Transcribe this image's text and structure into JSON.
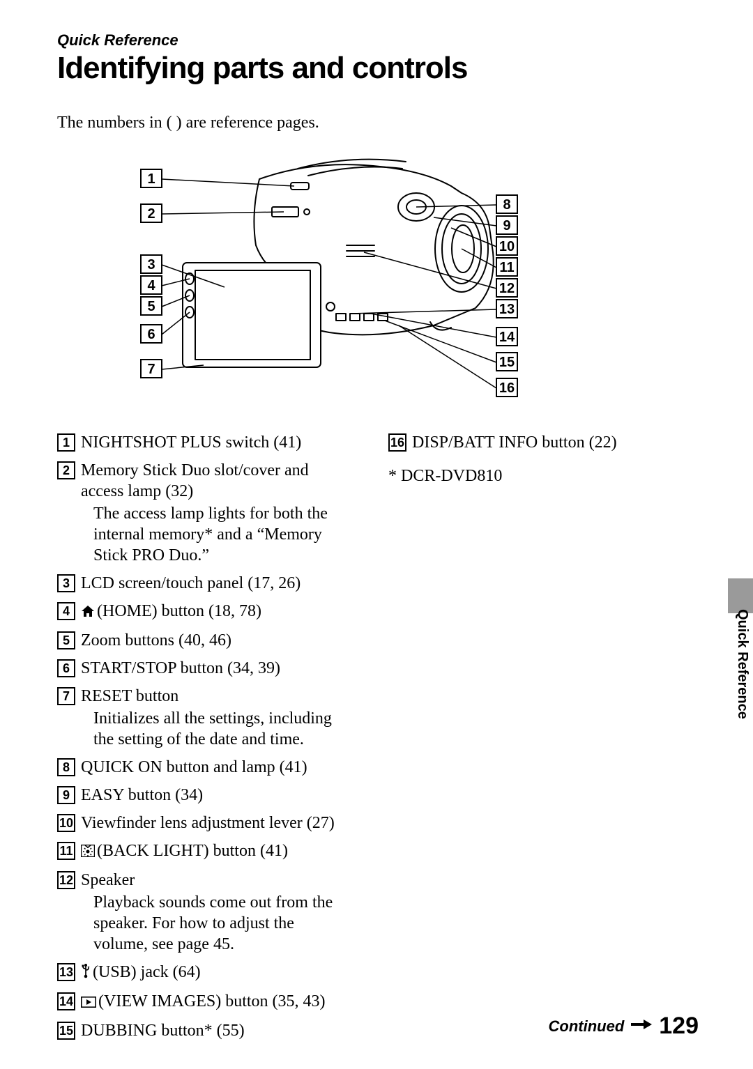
{
  "header": {
    "section_label": "Quick Reference",
    "title": "Identifying parts and controls",
    "intro": "The numbers in ( ) are reference pages."
  },
  "diagram": {
    "left_labels": [
      "1",
      "2",
      "3",
      "4",
      "5",
      "6",
      "7"
    ],
    "right_labels": [
      "8",
      "9",
      "10",
      "11",
      "12",
      "13",
      "14",
      "15",
      "16"
    ],
    "stroke": "#000000",
    "fill_body": "#ffffff",
    "fill_screen": "#ffffff",
    "label_fontsize": 20
  },
  "items_left": [
    {
      "num": "1",
      "icon": null,
      "text": "NIGHTSHOT PLUS switch (41)",
      "sub": null
    },
    {
      "num": "2",
      "icon": null,
      "text": "Memory Stick Duo slot/cover and access lamp (32)",
      "sub": "The access lamp lights for both the internal memory* and a “Memory Stick PRO Duo.”"
    },
    {
      "num": "3",
      "icon": null,
      "text": "LCD screen/touch panel (17, 26)",
      "sub": null
    },
    {
      "num": "4",
      "icon": "home",
      "text": "(HOME) button (18, 78)",
      "sub": null
    },
    {
      "num": "5",
      "icon": null,
      "text": "Zoom buttons (40, 46)",
      "sub": null
    },
    {
      "num": "6",
      "icon": null,
      "text": "START/STOP button (34, 39)",
      "sub": null
    },
    {
      "num": "7",
      "icon": null,
      "text": "RESET button",
      "sub": "Initializes all the settings, including the setting of the date and time."
    },
    {
      "num": "8",
      "icon": null,
      "text": "QUICK ON button and lamp (41)",
      "sub": null
    },
    {
      "num": "9",
      "icon": null,
      "text": "EASY button (34)",
      "sub": null
    },
    {
      "num": "10",
      "icon": null,
      "text": "Viewfinder lens adjustment lever (27)",
      "sub": null
    },
    {
      "num": "11",
      "icon": "backlight",
      "text": "(BACK LIGHT) button (41)",
      "sub": null
    },
    {
      "num": "12",
      "icon": null,
      "text": "Speaker",
      "sub": "Playback sounds come out from the speaker. For how to adjust the volume, see page 45."
    },
    {
      "num": "13",
      "icon": "usb",
      "text": "(USB) jack (64)",
      "sub": null
    },
    {
      "num": "14",
      "icon": "play",
      "text": "(VIEW IMAGES) button (35, 43)",
      "sub": null
    },
    {
      "num": "15",
      "icon": null,
      "text": "DUBBING button* (55)",
      "sub": null
    }
  ],
  "items_right": [
    {
      "num": "16",
      "icon": null,
      "text": "DISP/BATT INFO button (22)",
      "sub": null
    }
  ],
  "footnote": "* DCR-DVD810",
  "side_label": "Quick Reference",
  "footer": {
    "continued": "Continued",
    "page": "129"
  },
  "colors": {
    "text": "#000000",
    "background": "#ffffff",
    "side_tab": "#9a9a9a"
  },
  "typography": {
    "title_fontsize": 44,
    "section_label_fontsize": 22,
    "body_fontsize": 24,
    "numbox_fontsize": 18,
    "pagenum_fontsize": 34
  }
}
